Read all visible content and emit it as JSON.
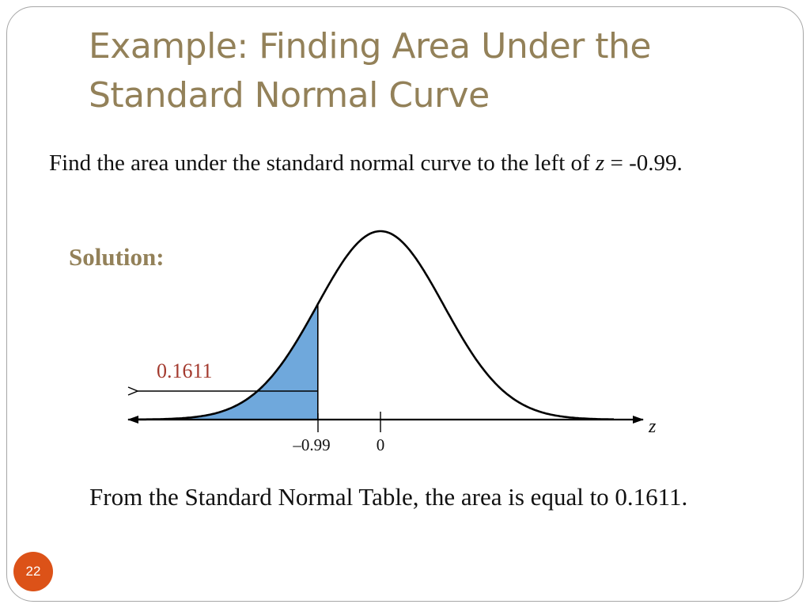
{
  "slide": {
    "title_line1": "Example: Finding Area Under the",
    "title_line2": "Standard Normal Curve",
    "question": {
      "text_before": "Find the area under the standard normal curve to the left of ",
      "variable": "z",
      "text_after": " = -0.99."
    },
    "solution_label": "Solution:",
    "answer_text": "From the Standard Normal Table, the area is equal to 0.1611.",
    "page_number": "22"
  },
  "diagram": {
    "area_label": "0.1611",
    "axis_variable": "z",
    "tick_labels": {
      "boundary": "–0.99",
      "mean": "0"
    },
    "boundary_z": -0.99,
    "shaded_area": 0.1611,
    "colors": {
      "shade": "#6fa8dc",
      "curve": "#000000",
      "area_label": "#a33a2e",
      "title": "#938159",
      "page_badge": "#dc5218"
    }
  }
}
